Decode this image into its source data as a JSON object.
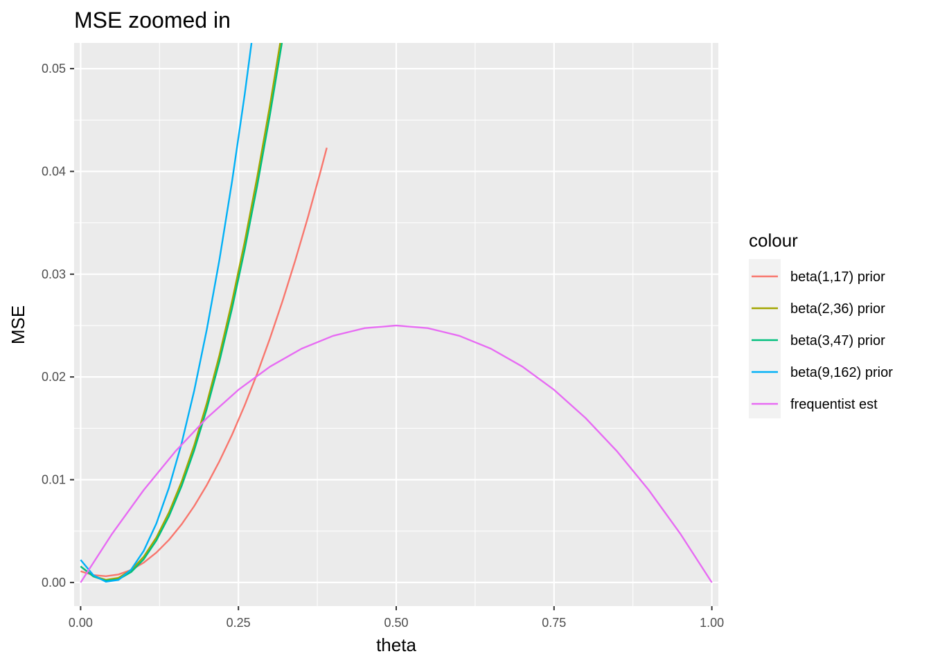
{
  "chart_data": {
    "type": "line",
    "title": "MSE zoomed in",
    "xlabel": "theta",
    "ylabel": "MSE",
    "xlim": [
      -0.0103,
      1.0103
    ],
    "ylim": [
      -0.0023,
      0.0525
    ],
    "x_ticks": [
      0.0,
      0.25,
      0.5,
      0.75,
      1.0
    ],
    "x_tick_labels": [
      "0.00",
      "0.25",
      "0.50",
      "0.75",
      "1.00"
    ],
    "y_ticks": [
      0.0,
      0.01,
      0.02,
      0.03,
      0.04,
      0.05
    ],
    "y_tick_labels": [
      "0.00",
      "0.01",
      "0.02",
      "0.03",
      "0.04",
      "0.05"
    ],
    "grid": true,
    "legend": {
      "title": "colour",
      "position": "right"
    },
    "series": [
      {
        "name": "beta(1,17) prior",
        "color": "#F8766D",
        "x": [
          0.0,
          0.02,
          0.04,
          0.06,
          0.08,
          0.1,
          0.12,
          0.14,
          0.16,
          0.18,
          0.2,
          0.22,
          0.24,
          0.26,
          0.28,
          0.3,
          0.32,
          0.34,
          0.36,
          0.38,
          0.39
        ],
        "y": [
          0.00109,
          0.00072,
          0.00061,
          0.00078,
          0.00122,
          0.00193,
          0.00291,
          0.00415,
          0.00566,
          0.00744,
          0.00949,
          0.01181,
          0.01439,
          0.01725,
          0.02037,
          0.02376,
          0.02741,
          0.03133,
          0.03552,
          0.03998,
          0.0423
        ]
      },
      {
        "name": "beta(2,36) prior",
        "color": "#A3A500",
        "x": [
          0.0,
          0.02,
          0.04,
          0.06,
          0.08,
          0.1,
          0.12,
          0.14,
          0.16,
          0.18,
          0.2,
          0.22,
          0.24,
          0.26,
          0.28,
          0.3,
          0.32,
          0.33
        ],
        "y": [
          0.00156,
          0.00063,
          0.00026,
          0.00045,
          0.0012,
          0.00251,
          0.00438,
          0.00682,
          0.00981,
          0.01336,
          0.01747,
          0.02215,
          0.02738,
          0.03318,
          0.03954,
          0.04645,
          0.05393,
          0.05788
        ]
      },
      {
        "name": "beta(3,47) prior",
        "color": "#00BF7D",
        "x": [
          0.0,
          0.02,
          0.04,
          0.06,
          0.08,
          0.1,
          0.12,
          0.14,
          0.16,
          0.18,
          0.2,
          0.22,
          0.24,
          0.26,
          0.28,
          0.3,
          0.32
        ],
        "y": [
          0.00156,
          0.00059,
          0.00017,
          0.00031,
          0.00101,
          0.00226,
          0.00408,
          0.00645,
          0.00938,
          0.01287,
          0.01692,
          0.02153,
          0.02669,
          0.03241,
          0.03869,
          0.04553,
          0.05292
        ]
      },
      {
        "name": "beta(9,162) prior",
        "color": "#00B0F6",
        "x": [
          0.0,
          0.02,
          0.04,
          0.06,
          0.08,
          0.1,
          0.12,
          0.14,
          0.16,
          0.18,
          0.2,
          0.22,
          0.24,
          0.26,
          0.28
        ],
        "y": [
          0.0022,
          0.00072,
          7e-05,
          0.00025,
          0.00125,
          0.00308,
          0.00574,
          0.00923,
          0.01354,
          0.01868,
          0.02465,
          0.03144,
          0.03907,
          0.04752,
          0.0568
        ]
      },
      {
        "name": "frequentist est",
        "color": "#E76BF3",
        "x": [
          0.0,
          0.05,
          0.1,
          0.15,
          0.2,
          0.25,
          0.3,
          0.35,
          0.4,
          0.45,
          0.5,
          0.55,
          0.6,
          0.65,
          0.7,
          0.75,
          0.8,
          0.85,
          0.9,
          0.95,
          1.0
        ],
        "y": [
          0.0,
          0.00475,
          0.009,
          0.01275,
          0.016,
          0.01875,
          0.021,
          0.02275,
          0.024,
          0.02475,
          0.025,
          0.02475,
          0.024,
          0.02275,
          0.021,
          0.01875,
          0.016,
          0.01275,
          0.009,
          0.00475,
          0.0
        ]
      }
    ]
  }
}
